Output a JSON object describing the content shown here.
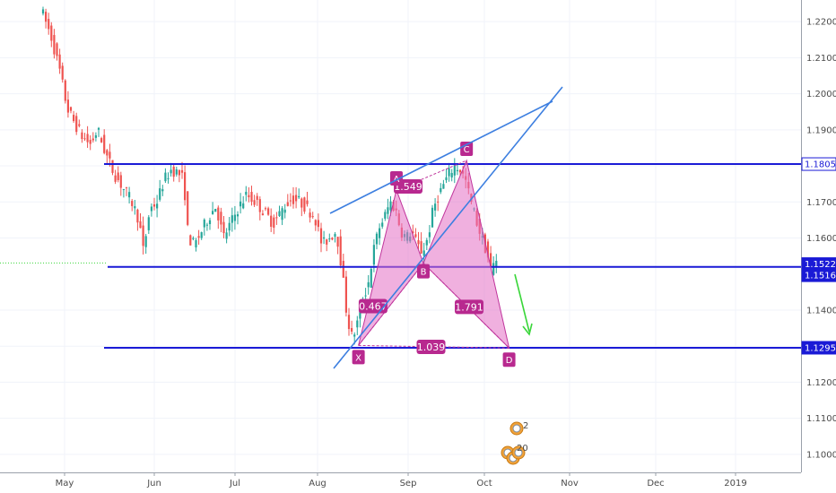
{
  "chart_data": {
    "type": "candlestick",
    "x_ticks": [
      "May",
      "Jun",
      "Jul",
      "Aug",
      "Sep",
      "Oct",
      "Nov",
      "Dec",
      "2019"
    ],
    "y_ticks": [
      "1.22000",
      "1.21000",
      "1.20000",
      "1.19000",
      "1.18000",
      "1.17000",
      "1.16000",
      "1.14000",
      "1.13000",
      "1.12000",
      "1.11000",
      "1.10000"
    ],
    "ylim": [
      1.095,
      1.226
    ],
    "grid": true,
    "price_tags": [
      {
        "label": "1.18050",
        "value": 1.1805,
        "style": "outline",
        "color": "#1a1ad6"
      },
      {
        "label": "1.15228",
        "value": 1.15228,
        "style": "filled",
        "color": "#1a1ad6"
      },
      {
        "label": "1.15165",
        "value": 1.15165,
        "style": "filled",
        "color": "#1a1ad6"
      },
      {
        "label": "1.12956",
        "value": 1.12956,
        "style": "filled",
        "color": "#1a1ad6"
      }
    ],
    "pattern": {
      "points": [
        {
          "label": "X",
          "date": "2018-08-15",
          "value": 1.1302
        },
        {
          "label": "A",
          "date": "2018-08-28",
          "value": 1.1733
        },
        {
          "label": "B",
          "date": "2018-09-07",
          "value": 1.153
        },
        {
          "label": "C",
          "date": "2018-09-24",
          "value": 1.1815
        },
        {
          "label": "D",
          "date": "2018-10-10",
          "value": 1.1295
        }
      ],
      "ratios": [
        {
          "label": "1.549",
          "date": "2018-09-01",
          "value": 1.1743
        },
        {
          "label": "0.467",
          "date": "2018-08-20",
          "value": 1.1411
        },
        {
          "label": "1.791",
          "date": "2018-09-25",
          "value": 1.1409
        },
        {
          "label": "1.039",
          "date": "2018-09-10",
          "value": 1.1298
        }
      ],
      "fill_color": "#e36fc4",
      "line_color": "#c0359c",
      "tag_color": "#b8298f"
    },
    "colors": {
      "up": "#26a69a",
      "down": "#ef5350",
      "level": "#1a1ad6",
      "trend": "#3d7fe0",
      "arrow": "#3ad63a",
      "grid": "#f0f3fa"
    }
  }
}
